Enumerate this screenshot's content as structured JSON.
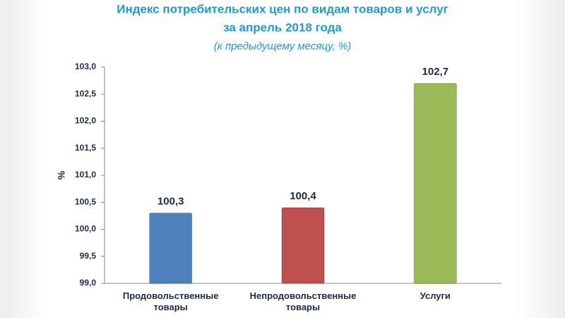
{
  "chart_data": {
    "type": "bar",
    "title": "Индекс потребительских цен по видам товаров и услуг",
    "subtitle": "за апрель 2018 года",
    "note": "(к предыдущему месяцу, %)",
    "y_label": "%",
    "categories": [
      "Продовольственные товары",
      "Непродовольственные товары",
      "Услуги"
    ],
    "values": [
      100.3,
      100.4,
      102.7
    ],
    "value_labels": [
      "100,3",
      "100,4",
      "102,7"
    ],
    "colors": [
      "#4f81bd",
      "#c0504d",
      "#9bbb59"
    ],
    "ylim": [
      99.0,
      103.0
    ],
    "yticks": [
      {
        "value": 99.0,
        "label": "99,0"
      },
      {
        "value": 99.5,
        "label": "99,5"
      },
      {
        "value": 100.0,
        "label": "100,0"
      },
      {
        "value": 100.5,
        "label": "100,5"
      },
      {
        "value": 101.0,
        "label": "101,0"
      },
      {
        "value": 101.5,
        "label": "101,5"
      },
      {
        "value": 102.0,
        "label": "102,0"
      },
      {
        "value": 102.5,
        "label": "102,5"
      },
      {
        "value": 103.0,
        "label": "103,0"
      }
    ],
    "grid": false
  }
}
